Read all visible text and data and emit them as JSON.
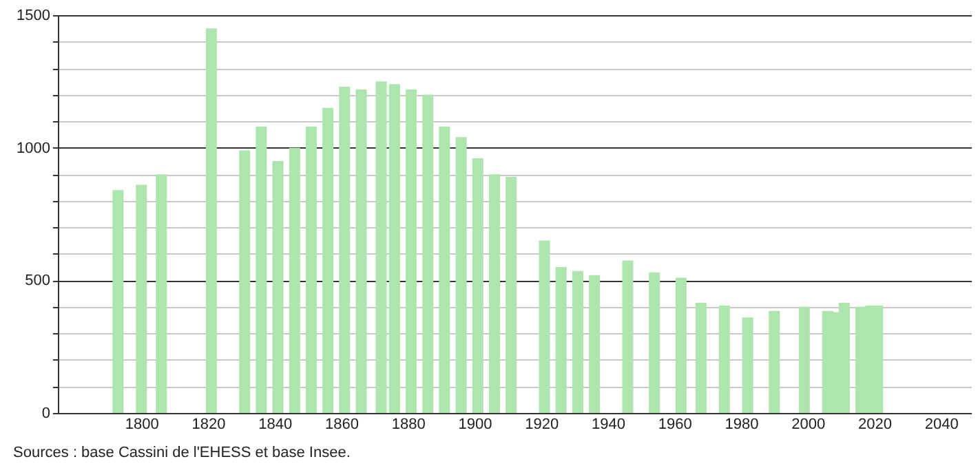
{
  "chart_data": {
    "type": "bar",
    "x": [
      1793,
      1800,
      1806,
      1821,
      1831,
      1836,
      1841,
      1846,
      1851,
      1856,
      1861,
      1866,
      1872,
      1876,
      1881,
      1886,
      1891,
      1896,
      1901,
      1906,
      1911,
      1921,
      1926,
      1931,
      1936,
      1946,
      1954,
      1962,
      1968,
      1975,
      1982,
      1990,
      1999,
      2006,
      2008,
      2011,
      2016,
      2019,
      2021
    ],
    "series": [
      {
        "color": "#aee4ae",
        "values": [
          840,
          860,
          900,
          1450,
          990,
          1080,
          950,
          1000,
          1080,
          1150,
          1230,
          1220,
          1250,
          1240,
          1220,
          1200,
          1080,
          1040,
          960,
          900,
          890,
          650,
          550,
          535,
          520,
          575,
          530,
          510,
          415,
          405,
          360,
          385,
          400,
          385,
          380,
          415,
          400,
          405,
          405
        ]
      }
    ],
    "xlim": [
      1777,
      2047
    ],
    "xticks": [
      1800,
      1820,
      1840,
      1860,
      1880,
      1900,
      1920,
      1940,
      1960,
      1980,
      2000,
      2020,
      2040
    ],
    "ylim": [
      0,
      1500
    ],
    "yticks": [
      0,
      {
        "value": 100,
        "label": null
      },
      {
        "value": 200,
        "label": null
      },
      {
        "value": 300,
        "label": null
      },
      {
        "value": 400,
        "label": null
      },
      500,
      {
        "value": 600,
        "label": null
      },
      {
        "value": 700,
        "label": null
      },
      {
        "value": 800,
        "label": null
      },
      {
        "value": 900,
        "label": null
      },
      1000,
      {
        "value": 1100,
        "label": null
      },
      {
        "value": 1200,
        "label": null
      },
      {
        "value": 1300,
        "label": null
      },
      {
        "value": 1400,
        "label": null
      },
      1500
    ],
    "grid": "y",
    "annotations": [
      "Sources : base Cassini de l'EHESS et base Insee."
    ]
  }
}
